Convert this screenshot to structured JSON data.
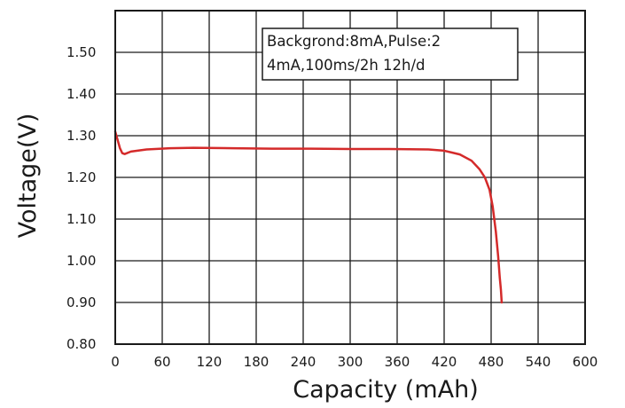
{
  "chart_data": {
    "type": "line",
    "title": "",
    "xlabel": "Capacity (mAh)",
    "ylabel": "Voltage(V)",
    "xlim": [
      0,
      600
    ],
    "ylim": [
      0.8,
      1.6
    ],
    "xticks": [
      0,
      60,
      120,
      180,
      240,
      300,
      360,
      420,
      480,
      540,
      600
    ],
    "xtick_labels": [
      "0",
      "60",
      "120",
      "180",
      "240",
      "300",
      "360",
      "420",
      "480",
      "540",
      "600"
    ],
    "yticks": [
      0.8,
      0.9,
      1.0,
      1.1,
      1.2,
      1.3,
      1.4,
      1.5
    ],
    "ytick_labels": [
      "0.80",
      "0.90",
      "1.00",
      "1.10",
      "1.20",
      "1.30",
      "1.40",
      "1.50"
    ],
    "grid": true,
    "annotation": {
      "line1": "Backgrond:8mA,Pulse:2",
      "line2": "4mA,100ms/2h 12h/d"
    },
    "series": [
      {
        "color": "#d42a2a",
        "x": [
          0,
          3,
          6,
          9,
          12,
          20,
          40,
          70,
          100,
          150,
          200,
          250,
          300,
          350,
          400,
          420,
          440,
          455,
          465,
          472,
          478,
          482,
          486,
          489,
          491,
          492.5,
          493,
          493.5
        ],
        "y": [
          1.31,
          1.29,
          1.27,
          1.258,
          1.256,
          1.262,
          1.267,
          1.27,
          1.271,
          1.27,
          1.269,
          1.269,
          1.268,
          1.268,
          1.267,
          1.264,
          1.255,
          1.24,
          1.22,
          1.2,
          1.17,
          1.13,
          1.07,
          1.01,
          0.96,
          0.93,
          0.915,
          0.9
        ]
      }
    ]
  }
}
